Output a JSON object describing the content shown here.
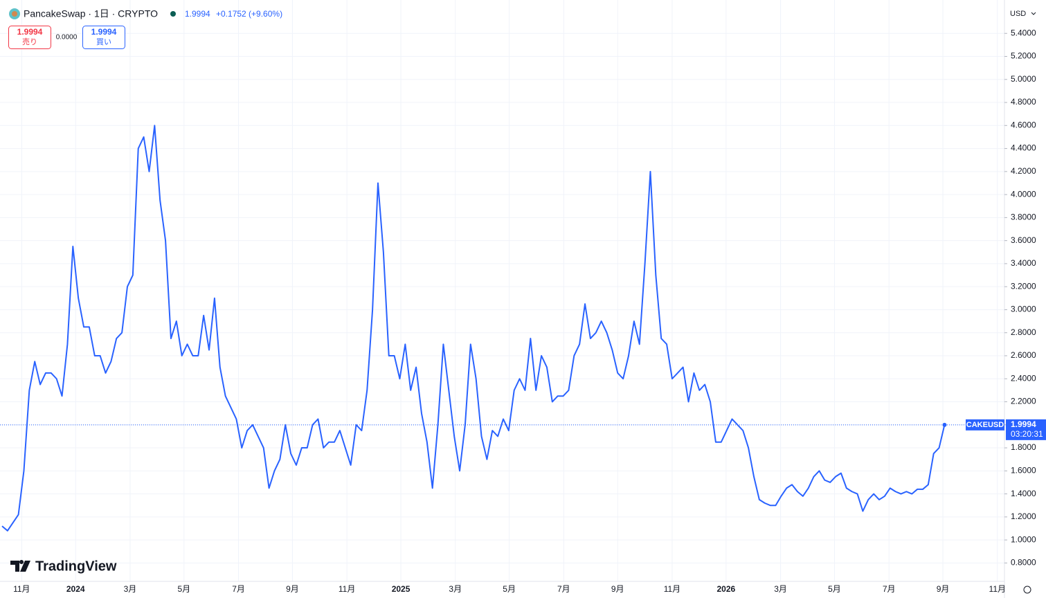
{
  "header": {
    "title": "PancakeSwap · 1日 · CRYPTO",
    "price": "1.9994",
    "change": "+0.1752 (+9.60%)",
    "sell_price": "1.9994",
    "sell_label": "売り",
    "spread": "0.0000",
    "buy_price": "1.9994",
    "buy_label": "買い",
    "currency": "USD"
  },
  "price_label": {
    "price": "1.9994",
    "countdown": "03:20:31"
  },
  "brand": "TradingView",
  "chart_data": {
    "type": "line",
    "grid": true,
    "line_width": 2,
    "xlim": [
      -0.38,
      184
    ],
    "xticks": [
      {
        "value": 3.6,
        "label": "11月"
      },
      {
        "value": 13.5,
        "label": "2024"
      },
      {
        "value": 23.5,
        "label": "3月"
      },
      {
        "value": 33.4,
        "label": "5月"
      },
      {
        "value": 43.4,
        "label": "7月"
      },
      {
        "value": 53.3,
        "label": "9月"
      },
      {
        "value": 63.3,
        "label": "11月"
      },
      {
        "value": 73.2,
        "label": "2025"
      },
      {
        "value": 83.2,
        "label": "3月"
      },
      {
        "value": 93.1,
        "label": "5月"
      },
      {
        "value": 103.1,
        "label": "7月"
      },
      {
        "value": 113.0,
        "label": "9月"
      },
      {
        "value": 123.0,
        "label": "11月"
      },
      {
        "value": 132.9,
        "label": "2026"
      },
      {
        "value": 142.9,
        "label": "3月"
      },
      {
        "value": 152.8,
        "label": "5月"
      },
      {
        "value": 162.8,
        "label": "7月"
      },
      {
        "value": 172.7,
        "label": "9月"
      },
      {
        "value": 182.7,
        "label": "11月"
      }
    ],
    "ylim": [
      0.64,
      5.69
    ],
    "yticks": [
      {
        "value": 0.8,
        "label": "0.8000"
      },
      {
        "value": 1.0,
        "label": "1.0000"
      },
      {
        "value": 1.2,
        "label": "1.2000"
      },
      {
        "value": 1.4,
        "label": "1.4000"
      },
      {
        "value": 1.6,
        "label": "1.6000"
      },
      {
        "value": 1.8,
        "label": "1.8000"
      },
      {
        "value": 2.0,
        "label": "2.0000"
      },
      {
        "value": 2.2,
        "label": "2.2000"
      },
      {
        "value": 2.4,
        "label": "2.4000"
      },
      {
        "value": 2.6,
        "label": "2.6000"
      },
      {
        "value": 2.8,
        "label": "2.8000"
      },
      {
        "value": 3.0,
        "label": "3.0000"
      },
      {
        "value": 3.2,
        "label": "3.2000"
      },
      {
        "value": 3.4,
        "label": "3.4000"
      },
      {
        "value": 3.6,
        "label": "3.6000"
      },
      {
        "value": 3.8,
        "label": "3.8000"
      },
      {
        "value": 4.0,
        "label": "4.0000"
      },
      {
        "value": 4.2,
        "label": "4.2000"
      },
      {
        "value": 4.4,
        "label": "4.4000"
      },
      {
        "value": 4.6,
        "label": "4.6000"
      },
      {
        "value": 4.8,
        "label": "4.8000"
      },
      {
        "value": 5.0,
        "label": "5.0000"
      },
      {
        "value": 5.2,
        "label": "5.2000"
      },
      {
        "value": 5.4,
        "label": "5.4000"
      }
    ],
    "series": [
      {
        "name": "CAKEUSD",
        "color": "#2962ff",
        "values": [
          1.12,
          1.08,
          1.15,
          1.22,
          1.6,
          2.3,
          2.55,
          2.35,
          2.45,
          2.45,
          2.4,
          2.25,
          2.7,
          3.55,
          3.1,
          2.85,
          2.85,
          2.6,
          2.6,
          2.45,
          2.55,
          2.75,
          2.8,
          3.2,
          3.3,
          4.4,
          4.5,
          4.2,
          4.6,
          3.95,
          3.6,
          2.75,
          2.9,
          2.6,
          2.7,
          2.6,
          2.6,
          2.95,
          2.65,
          3.1,
          2.5,
          2.25,
          2.15,
          2.05,
          1.8,
          1.95,
          2.0,
          1.9,
          1.8,
          1.45,
          1.6,
          1.7,
          2.0,
          1.75,
          1.65,
          1.8,
          1.8,
          2.0,
          2.05,
          1.8,
          1.85,
          1.85,
          1.95,
          1.8,
          1.65,
          2.0,
          1.95,
          2.3,
          3.0,
          4.1,
          3.5,
          2.6,
          2.6,
          2.4,
          2.7,
          2.3,
          2.5,
          2.1,
          1.85,
          1.45,
          2.0,
          2.7,
          2.3,
          1.9,
          1.6,
          2.0,
          2.7,
          2.4,
          1.9,
          1.7,
          1.95,
          1.9,
          2.05,
          1.95,
          2.3,
          2.4,
          2.3,
          2.75,
          2.3,
          2.6,
          2.5,
          2.2,
          2.25,
          2.25,
          2.3,
          2.6,
          2.7,
          3.05,
          2.75,
          2.8,
          2.9,
          2.8,
          2.65,
          2.45,
          2.4,
          2.6,
          2.9,
          2.7,
          3.4,
          4.2,
          3.3,
          2.75,
          2.7,
          2.4,
          2.45,
          2.5,
          2.2,
          2.45,
          2.3,
          2.35,
          2.2,
          1.85,
          1.85,
          1.95,
          2.05,
          2.0,
          1.95,
          1.8,
          1.55,
          1.35,
          1.32,
          1.3,
          1.3,
          1.38,
          1.45,
          1.48,
          1.42,
          1.38,
          1.45,
          1.55,
          1.6,
          1.52,
          1.5,
          1.55,
          1.58,
          1.45,
          1.42,
          1.4,
          1.25,
          1.35,
          1.4,
          1.35,
          1.38,
          1.45,
          1.42,
          1.4,
          1.42,
          1.4,
          1.44,
          1.44,
          1.48,
          1.75,
          1.8,
          1.9994
        ]
      }
    ]
  }
}
